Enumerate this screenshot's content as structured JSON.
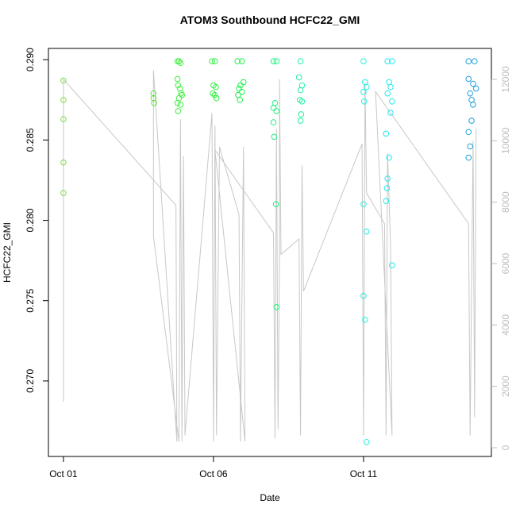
{
  "chart_data": {
    "type": "scatter",
    "title": "ATOM3 Southbound HCFC22_GMI",
    "xlabel": "Date",
    "ylabel": "HCFC22_GMI",
    "xlim": [
      -0.5,
      14.26
    ],
    "xticks": [
      {
        "value": 0,
        "label": "Oct 01"
      },
      {
        "value": 5,
        "label": "Oct 06"
      },
      {
        "value": 10,
        "label": "Oct 11"
      }
    ],
    "ylim": [
      0.2653,
      0.2907
    ],
    "yticks": [
      {
        "value": 0.27,
        "label": "0.270"
      },
      0.275,
      {
        "value": 0.28,
        "label": "0.280"
      },
      0.285,
      {
        "value": 0.29,
        "label": "0.290"
      }
    ],
    "y2lim": [
      -284,
      13008
    ],
    "y2ticks": [
      0,
      2000,
      4000,
      6000,
      8000,
      10000,
      12000
    ],
    "y2color": "#bdbdbd",
    "series": [
      {
        "type": "line",
        "axis": "y2",
        "color": "#c8c8c8",
        "x": [
          0,
          0,
          3.75,
          3.78,
          3.0,
          3.0,
          3.85,
          3.9,
          3.95,
          4.0,
          4.05,
          4.95,
          5.0,
          5.05,
          5.1,
          5.2,
          5.85,
          5.9,
          6.0,
          6.05,
          5.05,
          7.0,
          7.05,
          7.1,
          7.15,
          7.2,
          7.2,
          7.25,
          7.85,
          7.9,
          7.95,
          8.0,
          9.95,
          10.0,
          10.05,
          10.1,
          10.7,
          10.75,
          10.8,
          10.9,
          10.95,
          10.4,
          13.5,
          13.55,
          13.65,
          13.7,
          13.75
        ],
        "values": [
          1500,
          12000,
          7900,
          200,
          12300,
          6900,
          200,
          10700,
          200,
          9500,
          400,
          10900,
          200,
          10500,
          400,
          9800,
          7600,
          200,
          9800,
          200,
          9700,
          7000,
          300,
          10400,
          600,
          6200,
          12000,
          6300,
          6800,
          400,
          9200,
          5100,
          9900,
          400,
          11900,
          8300,
          7300,
          400,
          9600,
          6600,
          400,
          11600,
          7300,
          400,
          10000,
          1000,
          10400
        ]
      },
      {
        "color": "#80e040",
        "x": [
          0,
          0,
          0,
          0,
          0
        ],
        "values": [
          0.2887,
          0.2875,
          0.2863,
          0.2836,
          0.2817
        ]
      },
      {
        "color": "#60e040",
        "x": [
          3.0,
          3.0,
          3.02
        ],
        "values": [
          0.2879,
          0.2876,
          0.2873
        ]
      },
      {
        "color": "#40f040",
        "x": [
          3.8,
          3.85,
          3.9,
          3.8,
          3.82,
          3.88,
          3.92,
          3.95,
          3.85,
          3.8,
          3.9,
          3.82
        ],
        "values": [
          0.2899,
          0.2899,
          0.2898,
          0.2888,
          0.2884,
          0.2882,
          0.2879,
          0.2878,
          0.2876,
          0.2873,
          0.2872,
          0.2868
        ]
      },
      {
        "color": "#30f040",
        "x": [
          4.95,
          5.05,
          5.0,
          5.08,
          4.98,
          5.04,
          5.1
        ],
        "values": [
          0.2899,
          0.2899,
          0.2884,
          0.2883,
          0.2879,
          0.2878,
          0.2876
        ]
      },
      {
        "color": "#20f050",
        "x": [
          5.8,
          5.95,
          6.0,
          5.9,
          5.85,
          5.95,
          5.82,
          5.88
        ],
        "values": [
          0.2899,
          0.2899,
          0.2886,
          0.2884,
          0.2882,
          0.288,
          0.2878,
          0.2875
        ]
      },
      {
        "color": "#20f080",
        "x": [
          7.0,
          7.1,
          7.05,
          7.0,
          7.1,
          7.0,
          7.02,
          7.08,
          7.1
        ],
        "values": [
          0.2899,
          0.2899,
          0.2873,
          0.287,
          0.2868,
          0.2861,
          0.2852,
          0.281,
          0.2746
        ]
      },
      {
        "color": "#20f0a0",
        "x": [
          7.9,
          7.85,
          7.95,
          7.9,
          7.88,
          7.95,
          7.92,
          7.9
        ],
        "values": [
          0.2899,
          0.2889,
          0.2884,
          0.2881,
          0.2875,
          0.2874,
          0.2866,
          0.2862
        ]
      },
      {
        "color": "#20f0e0",
        "x": [
          10.0,
          10.05,
          10.1,
          10.0,
          10.02,
          10.0,
          10.1,
          10.0,
          10.05,
          10.1
        ],
        "values": [
          0.2899,
          0.2886,
          0.2883,
          0.288,
          0.2874,
          0.281,
          0.2793,
          0.2753,
          0.2738,
          0.2662
        ]
      },
      {
        "color": "#20e8f0",
        "x": [
          10.8,
          10.95,
          10.85,
          10.9,
          10.8,
          10.95,
          10.9,
          10.75,
          10.85,
          10.8,
          10.78,
          10.75,
          10.95
        ],
        "values": [
          0.2899,
          0.2899,
          0.2886,
          0.2883,
          0.2879,
          0.2874,
          0.2867,
          0.2854,
          0.2839,
          0.2826,
          0.282,
          0.2812,
          0.2772
        ]
      },
      {
        "color": "#20a0e0",
        "x": [
          13.5,
          13.7,
          13.5,
          13.65,
          13.75,
          13.55,
          13.6,
          13.65,
          13.6,
          13.5,
          13.55,
          13.5
        ],
        "values": [
          0.2899,
          0.2899,
          0.2888,
          0.2885,
          0.2882,
          0.2879,
          0.2875,
          0.2872,
          0.2862,
          0.2855,
          0.2846,
          0.2839
        ]
      }
    ]
  }
}
